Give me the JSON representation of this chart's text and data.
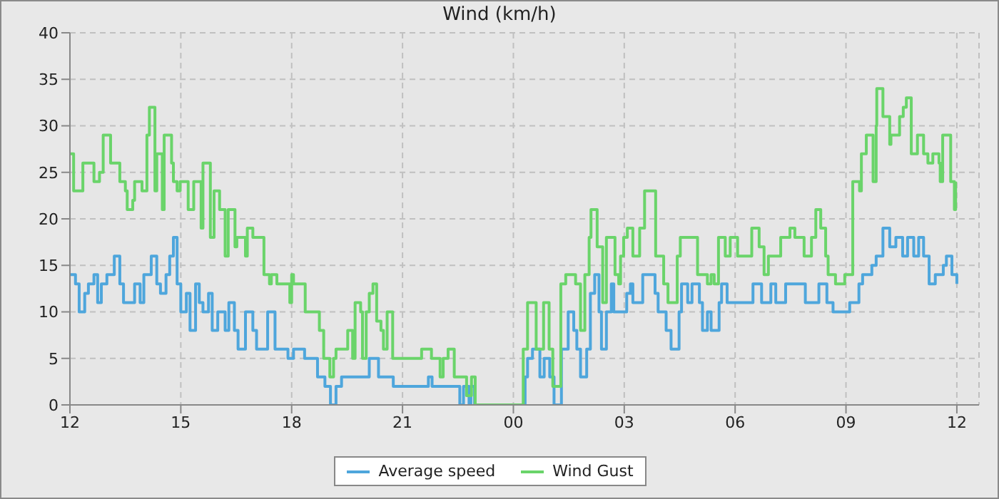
{
  "chart_data": {
    "type": "step",
    "title": "Wind (km/h)",
    "xlim": [
      "--01-01T12:00",
      "--01-02T12:36"
    ],
    "xticks": [
      {
        "value": "--01-01T12:00",
        "label": "12"
      },
      {
        "value": "--01-01T15:00",
        "label": "15"
      },
      {
        "value": "--01-01T18:00",
        "label": "18"
      },
      {
        "value": "--01-01T21:00",
        "label": "21"
      },
      {
        "value": "--01-02T00:00",
        "label": "00"
      },
      {
        "value": "--01-02T03:00",
        "label": "03"
      },
      {
        "value": "--01-02T06:00",
        "label": "06"
      },
      {
        "value": "--01-02T09:00",
        "label": "09"
      },
      {
        "value": "--01-02T12:00",
        "label": "12"
      }
    ],
    "ylim": [
      0,
      40
    ],
    "yticks": [
      0,
      5,
      10,
      15,
      20,
      25,
      30,
      35,
      40
    ],
    "grid": true,
    "legend": "bottom",
    "marker": "none",
    "line_style": "solid",
    "series": [
      {
        "name": "Average speed",
        "color": "#4ea6dc",
        "x": [
          "--01-01T12:00",
          "--01-01T12:09",
          "--01-01T12:15",
          "--01-01T12:24",
          "--01-01T12:30",
          "--01-01T12:39",
          "--01-01T12:45",
          "--01-01T12:51",
          "--01-01T13:00",
          "--01-01T13:12",
          "--01-01T13:21",
          "--01-01T13:27",
          "--01-01T13:45",
          "--01-01T13:54",
          "--01-01T14:00",
          "--01-01T14:12",
          "--01-01T14:21",
          "--01-01T14:27",
          "--01-01T14:36",
          "--01-01T14:42",
          "--01-01T14:48",
          "--01-01T14:54",
          "--01-01T15:00",
          "--01-01T15:09",
          "--01-01T15:15",
          "--01-01T15:24",
          "--01-01T15:30",
          "--01-01T15:36",
          "--01-01T15:45",
          "--01-01T15:51",
          "--01-01T16:00",
          "--01-01T16:12",
          "--01-01T16:18",
          "--01-01T16:27",
          "--01-01T16:33",
          "--01-01T16:45",
          "--01-01T16:57",
          "--01-01T17:03",
          "--01-01T17:21",
          "--01-01T17:33",
          "--01-01T17:54",
          "--01-01T18:03",
          "--01-01T18:21",
          "--01-01T18:42",
          "--01-01T18:54",
          "--01-01T19:03",
          "--01-01T19:12",
          "--01-01T19:21",
          "--01-01T20:06",
          "--01-01T20:21",
          "--01-01T20:45",
          "--01-01T21:42",
          "--01-01T21:48",
          "--01-01T22:33",
          "--01-01T22:39",
          "--01-01T22:48",
          "--01-01T22:51",
          "--01-01T22:57",
          "--01-02T00:19",
          "--01-02T00:23",
          "--01-02T00:31",
          "--01-02T00:43",
          "--01-02T00:50",
          "--01-02T00:59",
          "--01-02T01:06",
          "--01-02T01:18",
          "--01-02T01:29",
          "--01-02T01:38",
          "--01-02T01:43",
          "--01-02T01:49",
          "--01-02T01:59",
          "--01-02T02:05",
          "--01-02T02:12",
          "--01-02T02:19",
          "--01-02T02:23",
          "--01-02T02:31",
          "--01-02T02:39",
          "--01-02T02:43",
          "--01-02T03:04",
          "--01-02T03:10",
          "--01-02T03:14",
          "--01-02T03:30",
          "--01-02T03:50",
          "--01-02T03:55",
          "--01-02T04:08",
          "--01-02T04:16",
          "--01-02T04:29",
          "--01-02T04:33",
          "--01-02T04:43",
          "--01-02T04:50",
          "--01-02T05:02",
          "--01-02T05:07",
          "--01-02T05:15",
          "--01-02T05:21",
          "--01-02T05:34",
          "--01-02T05:38",
          "--01-02T05:47",
          "--01-02T06:29",
          "--01-02T06:43",
          "--01-02T06:58",
          "--01-02T07:06",
          "--01-02T07:22",
          "--01-02T07:54",
          "--01-02T08:16",
          "--01-02T08:29",
          "--01-02T08:39",
          "--01-02T09:06",
          "--01-02T09:21",
          "--01-02T09:27",
          "--01-02T09:42",
          "--01-02T09:49",
          "--01-02T10:00",
          "--01-02T10:11",
          "--01-02T10:21",
          "--01-02T10:32",
          "--01-02T10:40",
          "--01-02T10:50",
          "--01-02T10:58",
          "--01-02T11:06",
          "--01-02T11:15",
          "--01-02T11:25",
          "--01-02T11:38",
          "--01-02T11:43",
          "--01-02T11:52",
          "--01-02T12:00"
        ],
        "values": [
          14,
          13,
          10,
          12,
          13,
          14,
          11,
          13,
          14,
          16,
          13,
          11,
          13,
          11,
          14,
          16,
          13,
          12,
          14,
          16,
          18,
          13,
          10,
          12,
          8,
          13,
          11,
          10,
          12,
          8,
          10,
          8,
          11,
          8,
          6,
          10,
          8,
          6,
          10,
          6,
          5,
          6,
          5,
          3,
          2,
          0,
          2,
          3,
          5,
          3,
          2,
          3,
          2,
          0,
          2,
          0,
          2,
          0,
          3,
          5,
          6,
          3,
          5,
          3,
          0,
          6,
          10,
          8,
          6,
          3,
          6,
          12,
          14,
          10,
          6,
          10,
          13,
          10,
          12,
          13,
          11,
          14,
          12,
          10,
          8,
          6,
          10,
          13,
          11,
          13,
          11,
          8,
          10,
          8,
          11,
          13,
          11,
          13,
          11,
          13,
          11,
          13,
          11,
          13,
          11,
          10,
          11,
          13,
          14,
          15,
          16,
          19,
          17,
          18,
          16,
          18,
          16,
          18,
          16,
          13,
          14,
          15,
          16,
          14,
          13
        ]
      },
      {
        "name": "Wind Gust",
        "color": "#6ad46a",
        "x": [
          "--01-01T12:00",
          "--01-01T12:06",
          "--01-01T12:21",
          "--01-01T12:39",
          "--01-01T12:48",
          "--01-01T12:54",
          "--01-01T13:06",
          "--01-01T13:21",
          "--01-01T13:30",
          "--01-01T13:33",
          "--01-01T13:42",
          "--01-01T13:45",
          "--01-01T13:57",
          "--01-01T14:05",
          "--01-01T14:09",
          "--01-01T14:18",
          "--01-01T14:21",
          "--01-01T14:30",
          "--01-01T14:33",
          "--01-01T14:45",
          "--01-01T14:48",
          "--01-01T14:54",
          "--01-01T14:59",
          "--01-01T15:12",
          "--01-01T15:21",
          "--01-01T15:33",
          "--01-01T15:36",
          "--01-01T15:48",
          "--01-01T15:54",
          "--01-01T16:03",
          "--01-01T16:12",
          "--01-01T16:17",
          "--01-01T16:28",
          "--01-01T16:31",
          "--01-01T16:45",
          "--01-01T16:48",
          "--01-01T16:57",
          "--01-01T17:15",
          "--01-01T17:24",
          "--01-01T17:27",
          "--01-01T17:36",
          "--01-01T17:57",
          "--01-01T18:00",
          "--01-01T18:03",
          "--01-01T18:22",
          "--01-01T18:45",
          "--01-01T18:52",
          "--01-01T19:02",
          "--01-01T19:08",
          "--01-01T19:12",
          "--01-01T19:31",
          "--01-01T19:39",
          "--01-01T19:43",
          "--01-01T19:52",
          "--01-01T19:55",
          "--01-01T20:01",
          "--01-01T20:06",
          "--01-01T20:12",
          "--01-01T20:18",
          "--01-01T20:25",
          "--01-01T20:29",
          "--01-01T20:35",
          "--01-01T20:44",
          "--01-01T21:31",
          "--01-01T21:47",
          "--01-01T22:01",
          "--01-01T22:06",
          "--01-01T22:14",
          "--01-01T22:24",
          "--01-01T22:44",
          "--01-01T22:52",
          "--01-01T22:58",
          "--01-02T00:16",
          "--01-02T00:23",
          "--01-02T00:37",
          "--01-02T00:49",
          "--01-02T00:58",
          "--01-02T01:04",
          "--01-02T01:17",
          "--01-02T01:25",
          "--01-02T01:41",
          "--01-02T01:49",
          "--01-02T01:56",
          "--01-02T02:03",
          "--01-02T02:06",
          "--01-02T02:16",
          "--01-02T02:25",
          "--01-02T02:31",
          "--01-02T02:45",
          "--01-02T02:51",
          "--01-02T02:54",
          "--01-02T02:59",
          "--01-02T03:05",
          "--01-02T03:14",
          "--01-02T03:25",
          "--01-02T03:33",
          "--01-02T03:51",
          "--01-02T04:04",
          "--01-02T04:11",
          "--01-02T04:26",
          "--01-02T04:31",
          "--01-02T04:59",
          "--01-02T05:15",
          "--01-02T05:21",
          "--01-02T05:26",
          "--01-02T05:33",
          "--01-02T05:44",
          "--01-02T05:52",
          "--01-02T06:04",
          "--01-02T06:27",
          "--01-02T06:39",
          "--01-02T06:47",
          "--01-02T06:54",
          "--01-02T07:14",
          "--01-02T07:29",
          "--01-02T07:37",
          "--01-02T07:52",
          "--01-02T08:04",
          "--01-02T08:11",
          "--01-02T08:19",
          "--01-02T08:27",
          "--01-02T08:31",
          "--01-02T08:43",
          "--01-02T08:58",
          "--01-02T09:11",
          "--01-02T09:22",
          "--01-02T09:25",
          "--01-02T09:33",
          "--01-02T09:44",
          "--01-02T09:49",
          "--01-02T09:50",
          "--01-02T10:00",
          "--01-02T10:11",
          "--01-02T10:13",
          "--01-02T10:27",
          "--01-02T10:33",
          "--01-02T10:38",
          "--01-02T10:46",
          "--01-02T10:56",
          "--01-02T11:06",
          "--01-02T11:13",
          "--01-02T11:21",
          "--01-02T11:31",
          "--01-02T11:33",
          "--01-02T11:37",
          "--01-02T11:50",
          "--01-02T11:56",
          "--01-02T11:58"
        ],
        "values": [
          27,
          23,
          26,
          24,
          25,
          29,
          26,
          24,
          23,
          21,
          22,
          24,
          23,
          29,
          32,
          23,
          27,
          21,
          29,
          26,
          24,
          23,
          24,
          21,
          24,
          19,
          26,
          18,
          23,
          21,
          16,
          21,
          17,
          18,
          16,
          19,
          18,
          14,
          13,
          14,
          13,
          11,
          14,
          13,
          10,
          8,
          5,
          3,
          5,
          6,
          8,
          5,
          11,
          10,
          5,
          10,
          12,
          13,
          9,
          8,
          6,
          10,
          5,
          6,
          5,
          3,
          5,
          6,
          3,
          1,
          3,
          0,
          6,
          11,
          6,
          11,
          6,
          2,
          13,
          14,
          13,
          8,
          14,
          18,
          21,
          17,
          11,
          18,
          14,
          13,
          16,
          18,
          19,
          16,
          19,
          23,
          16,
          13,
          11,
          16,
          18,
          14,
          13,
          14,
          13,
          18,
          16,
          18,
          16,
          19,
          17,
          14,
          16,
          18,
          19,
          18,
          16,
          18,
          21,
          19,
          16,
          14,
          13,
          14,
          24,
          23,
          27,
          29,
          24,
          30,
          34,
          31,
          28,
          29,
          31,
          32,
          33,
          27,
          29,
          27,
          26,
          27,
          26,
          24,
          29,
          24,
          21,
          24
        ]
      }
    ]
  }
}
